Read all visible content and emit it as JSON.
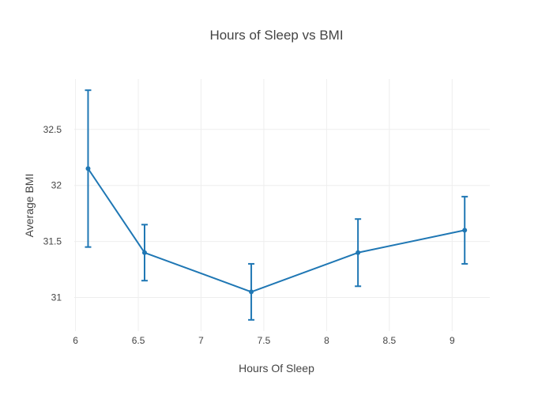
{
  "chart_data": {
    "type": "line",
    "title": "Hours of Sleep vs BMI",
    "xlabel": "Hours Of Sleep",
    "ylabel": "Average BMI",
    "xlim": [
      5.99,
      9.3
    ],
    "ylim": [
      30.7,
      32.95
    ],
    "x_ticks": [
      6,
      6.5,
      7,
      7.5,
      8,
      8.5,
      9
    ],
    "x_tick_labels": [
      "6",
      "6.5",
      "7",
      "7.5",
      "8",
      "8.5",
      "9"
    ],
    "y_ticks": [
      31,
      31.5,
      32,
      32.5
    ],
    "y_tick_labels": [
      "31",
      "31.5",
      "32",
      "32.5"
    ],
    "grid": true,
    "legend": "none",
    "series": [
      {
        "color": "#1f77b4",
        "x": [
          6.1,
          6.55,
          7.4,
          8.25,
          9.1
        ],
        "y": [
          32.15,
          31.4,
          31.05,
          31.4,
          31.6
        ],
        "error_low": [
          31.45,
          31.15,
          30.8,
          31.1,
          31.3
        ],
        "error_high": [
          32.85,
          31.65,
          31.3,
          31.7,
          31.9
        ]
      }
    ]
  }
}
